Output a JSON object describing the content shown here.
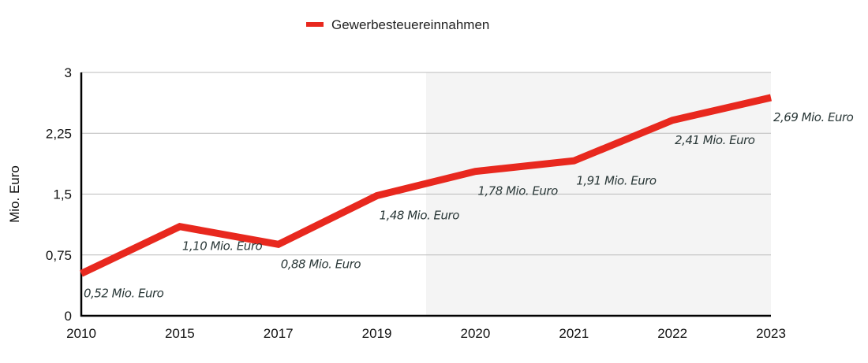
{
  "chart_data": {
    "type": "line",
    "title": "",
    "categories": [
      "2010",
      "2015",
      "2017",
      "2019",
      "2020",
      "2021",
      "2022",
      "2023"
    ],
    "series": [
      {
        "name": "Gewerbesteuereinnahmen",
        "color": "#e8281e",
        "values": [
          0.52,
          1.1,
          0.88,
          1.48,
          1.78,
          1.91,
          2.41,
          2.69
        ]
      }
    ],
    "data_labels": [
      "0,52 Mio. Euro",
      "1,10 Mio. Euro",
      "0,88 Mio. Euro",
      "1,48 Mio. Euro",
      "1,78 Mio. Euro",
      "1,91 Mio. Euro",
      "2,41 Mio. Euro",
      "2,69 Mio. Euro"
    ],
    "xlabel": "",
    "ylabel": "Mio. Euro",
    "ylim": [
      0,
      3
    ],
    "yticks": [
      0,
      0.75,
      1.5,
      2.25,
      3
    ],
    "ytick_labels": [
      "0",
      "0,75",
      "1,5",
      "2,25",
      "3"
    ],
    "grid": true,
    "shaded_region": {
      "from_category": "2019",
      "to_category": "2023",
      "note": "starts midway between 2019 and 2020",
      "color": "#f4f4f4"
    },
    "legend_position": "top-center"
  }
}
